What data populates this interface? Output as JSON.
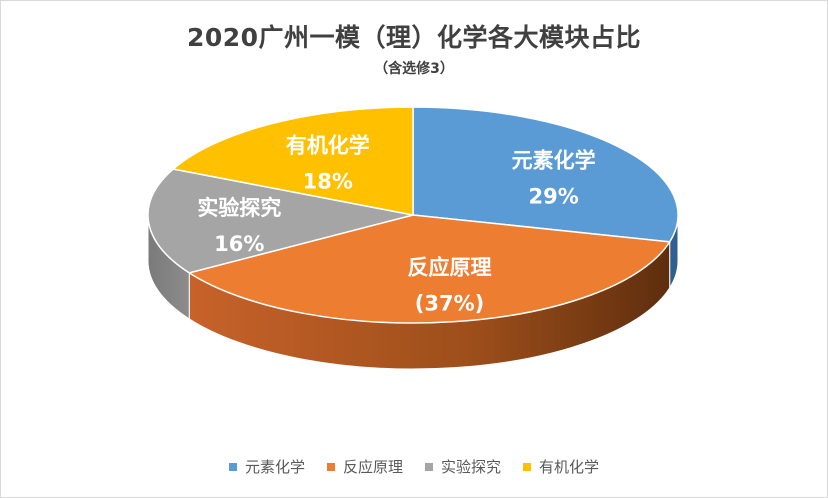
{
  "chart_data": {
    "type": "pie",
    "title": "2020广州一模（理）化学各大模块占比",
    "subtitle": "（含选修3）",
    "categories": [
      "元素化学",
      "反应原理",
      "实验探究",
      "有机化学"
    ],
    "values": [
      29,
      37,
      16,
      18
    ],
    "value_labels": [
      "29%",
      "(37%)",
      "16%",
      "18%"
    ],
    "colors": [
      "#5b9bd5",
      "#ed7d31",
      "#a5a5a5",
      "#ffc000"
    ],
    "side_colors": [
      "#2e5f8e",
      "#b35a1c",
      "#6f6f6f",
      "#b88a00"
    ],
    "legend_position": "bottom",
    "style": "3d"
  }
}
